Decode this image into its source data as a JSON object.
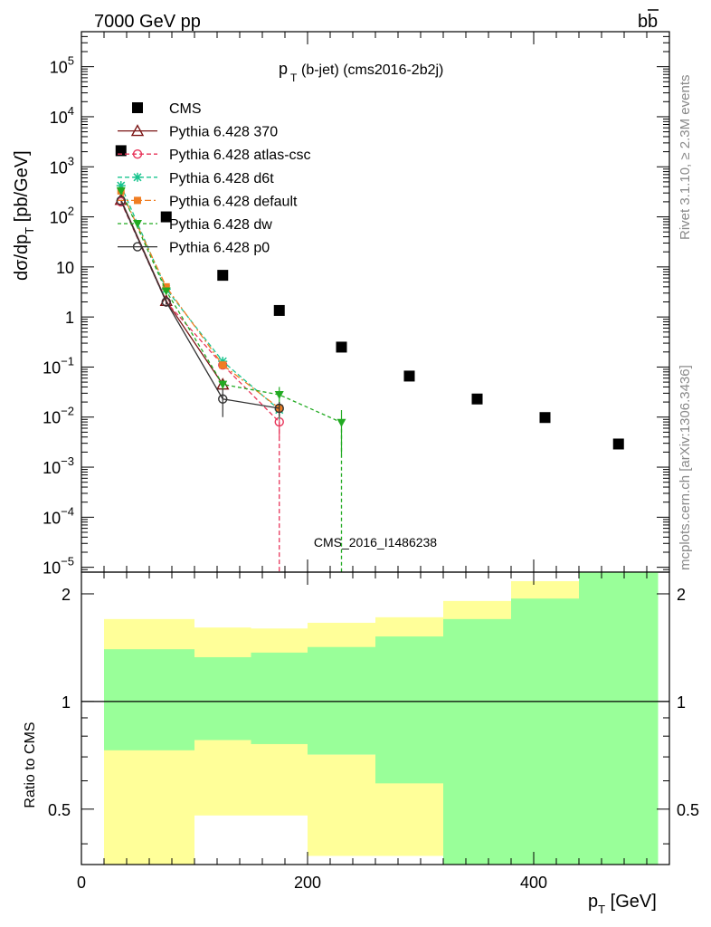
{
  "header": {
    "energy_label": "7000 GeV pp",
    "process_label": "b",
    "process_label_bar": "b"
  },
  "side_labels": {
    "rivet": "Rivet 3.1.10, ≥ 2.3M events",
    "mcplots": "mcplots.cern.ch [arXiv:1306.3436]"
  },
  "watermark": "CMS_2016_I1486238",
  "chart_data": [
    {
      "type": "line",
      "panel": "main",
      "title_main": "p",
      "title_sub": "T",
      "title_rest": "(b-jet) (cms2016-2b2j)",
      "ylabel_parts": [
        "dσ/dp",
        "T",
        " [pb/GeV]"
      ],
      "ylog": true,
      "xlim": [
        0,
        520
      ],
      "ylim": [
        8e-06,
        500000.0
      ],
      "y_ticks": [
        {
          "value": 100000.0,
          "base": "10",
          "exp": "5"
        },
        {
          "value": 10000.0,
          "base": "10",
          "exp": "4"
        },
        {
          "value": 1000.0,
          "base": "10",
          "exp": "3"
        },
        {
          "value": 100.0,
          "base": "10",
          "exp": "2"
        },
        {
          "value": 10,
          "base": "10",
          "exp": ""
        },
        {
          "value": 1,
          "base": "1",
          "exp": ""
        },
        {
          "value": 0.1,
          "base": "10",
          "exp": "−1"
        },
        {
          "value": 0.01,
          "base": "10",
          "exp": "−2"
        },
        {
          "value": 0.001,
          "base": "10",
          "exp": "−3"
        },
        {
          "value": 0.0001,
          "base": "10",
          "exp": "−4"
        },
        {
          "value": 1e-05,
          "base": "10",
          "exp": "−5"
        }
      ],
      "legend_position": "top-left",
      "series": [
        {
          "name": "CMS",
          "kind": "data",
          "color": "#000000",
          "marker": "square",
          "x": [
            35,
            75,
            125,
            175,
            230,
            290,
            350,
            410,
            475
          ],
          "y": [
            2100,
            100,
            6.8,
            1.35,
            0.25,
            0.066,
            0.023,
            0.0098,
            0.0029
          ]
        },
        {
          "name": "Pythia 6.428 370",
          "color": "#7a1414",
          "marker": "triangle-open",
          "dash": "",
          "x": [
            35,
            75,
            125
          ],
          "y": [
            220,
            2.1,
            0.045
          ],
          "err": [
            0,
            0.2,
            0.008
          ]
        },
        {
          "name": "Pythia 6.428 atlas-csc",
          "color": "#e8355a",
          "marker": "circle-open",
          "dash": "5,3",
          "x": [
            35,
            75,
            125,
            175
          ],
          "y": [
            200,
            2.0,
            0.11,
            0.008
          ],
          "err": [
            0,
            0.2,
            0.015,
            0.004
          ],
          "drop_x": 175
        },
        {
          "name": "Pythia 6.428 d6t",
          "color": "#18c48e",
          "marker": "star",
          "dash": "5,3",
          "x": [
            35,
            75,
            125,
            175
          ],
          "y": [
            420,
            3.6,
            0.13,
            0.014
          ],
          "err": [
            0,
            0.3,
            0.02,
            0.005
          ]
        },
        {
          "name": "Pythia 6.428 default",
          "color": "#f07d22",
          "marker": "square-filled",
          "dash": "7,3,2,3",
          "x": [
            35,
            75,
            125,
            175
          ],
          "y": [
            330,
            4.0,
            0.11,
            0.015
          ],
          "err": [
            0,
            0.3,
            0.02,
            0.005
          ]
        },
        {
          "name": "Pythia 6.428 dw",
          "color": "#22aa22",
          "marker": "triangle-down",
          "dash": "4,3",
          "x": [
            35,
            75,
            125,
            175,
            230
          ],
          "y": [
            330,
            3.3,
            0.045,
            0.028,
            0.0078
          ],
          "err": [
            0,
            0.3,
            0.01,
            0.012,
            0.006
          ],
          "drop_x": 230
        },
        {
          "name": "Pythia 6.428 p0",
          "color": "#333333",
          "marker": "circle-open",
          "dash": "",
          "x": [
            35,
            75,
            125,
            175
          ],
          "y": [
            210,
            2.0,
            0.023,
            0.015
          ],
          "err": [
            0,
            0.2,
            0.013,
            0.005
          ]
        }
      ]
    },
    {
      "type": "area",
      "panel": "ratio",
      "ylabel": "Ratio to CMS",
      "xlabel_main": "p",
      "xlabel_sub": "T",
      "xlabel_rest": " [GeV]",
      "xlim": [
        0,
        520
      ],
      "ylim": [
        0.35,
        2.3
      ],
      "x_ticks": [
        0,
        200,
        400
      ],
      "y_ticks": [
        0.5,
        1,
        2
      ],
      "bins": [
        20,
        100,
        150,
        200,
        260,
        320,
        380,
        440,
        510
      ],
      "yellow_band": {
        "low": [
          0.73,
          0.78,
          0.76,
          0.71,
          0.59,
          0.35,
          0.35,
          0.35
        ],
        "high": [
          1.7,
          1.61,
          1.6,
          1.66,
          1.72,
          1.91,
          2.17,
          2.35
        ]
      },
      "green_band": {
        "low": [
          0.35,
          0.35,
          0.35,
          0.35,
          0.35,
          0.35,
          0.35,
          0.35
        ],
        "high": [
          1.4,
          1.33,
          1.37,
          1.42,
          1.52,
          1.7,
          1.94,
          2.35
        ]
      },
      "green_low_actual": [
        0.35,
        0.35,
        0.35,
        0.35,
        0.35,
        0.35,
        0.35,
        0.35
      ],
      "white_gap": {
        "bins_index": [
          1,
          3
        ],
        "low": 0.35,
        "high": 0.48
      },
      "reference_line": 1,
      "colors": {
        "yellow": "#ffff99",
        "green": "#99ff99"
      }
    }
  ]
}
